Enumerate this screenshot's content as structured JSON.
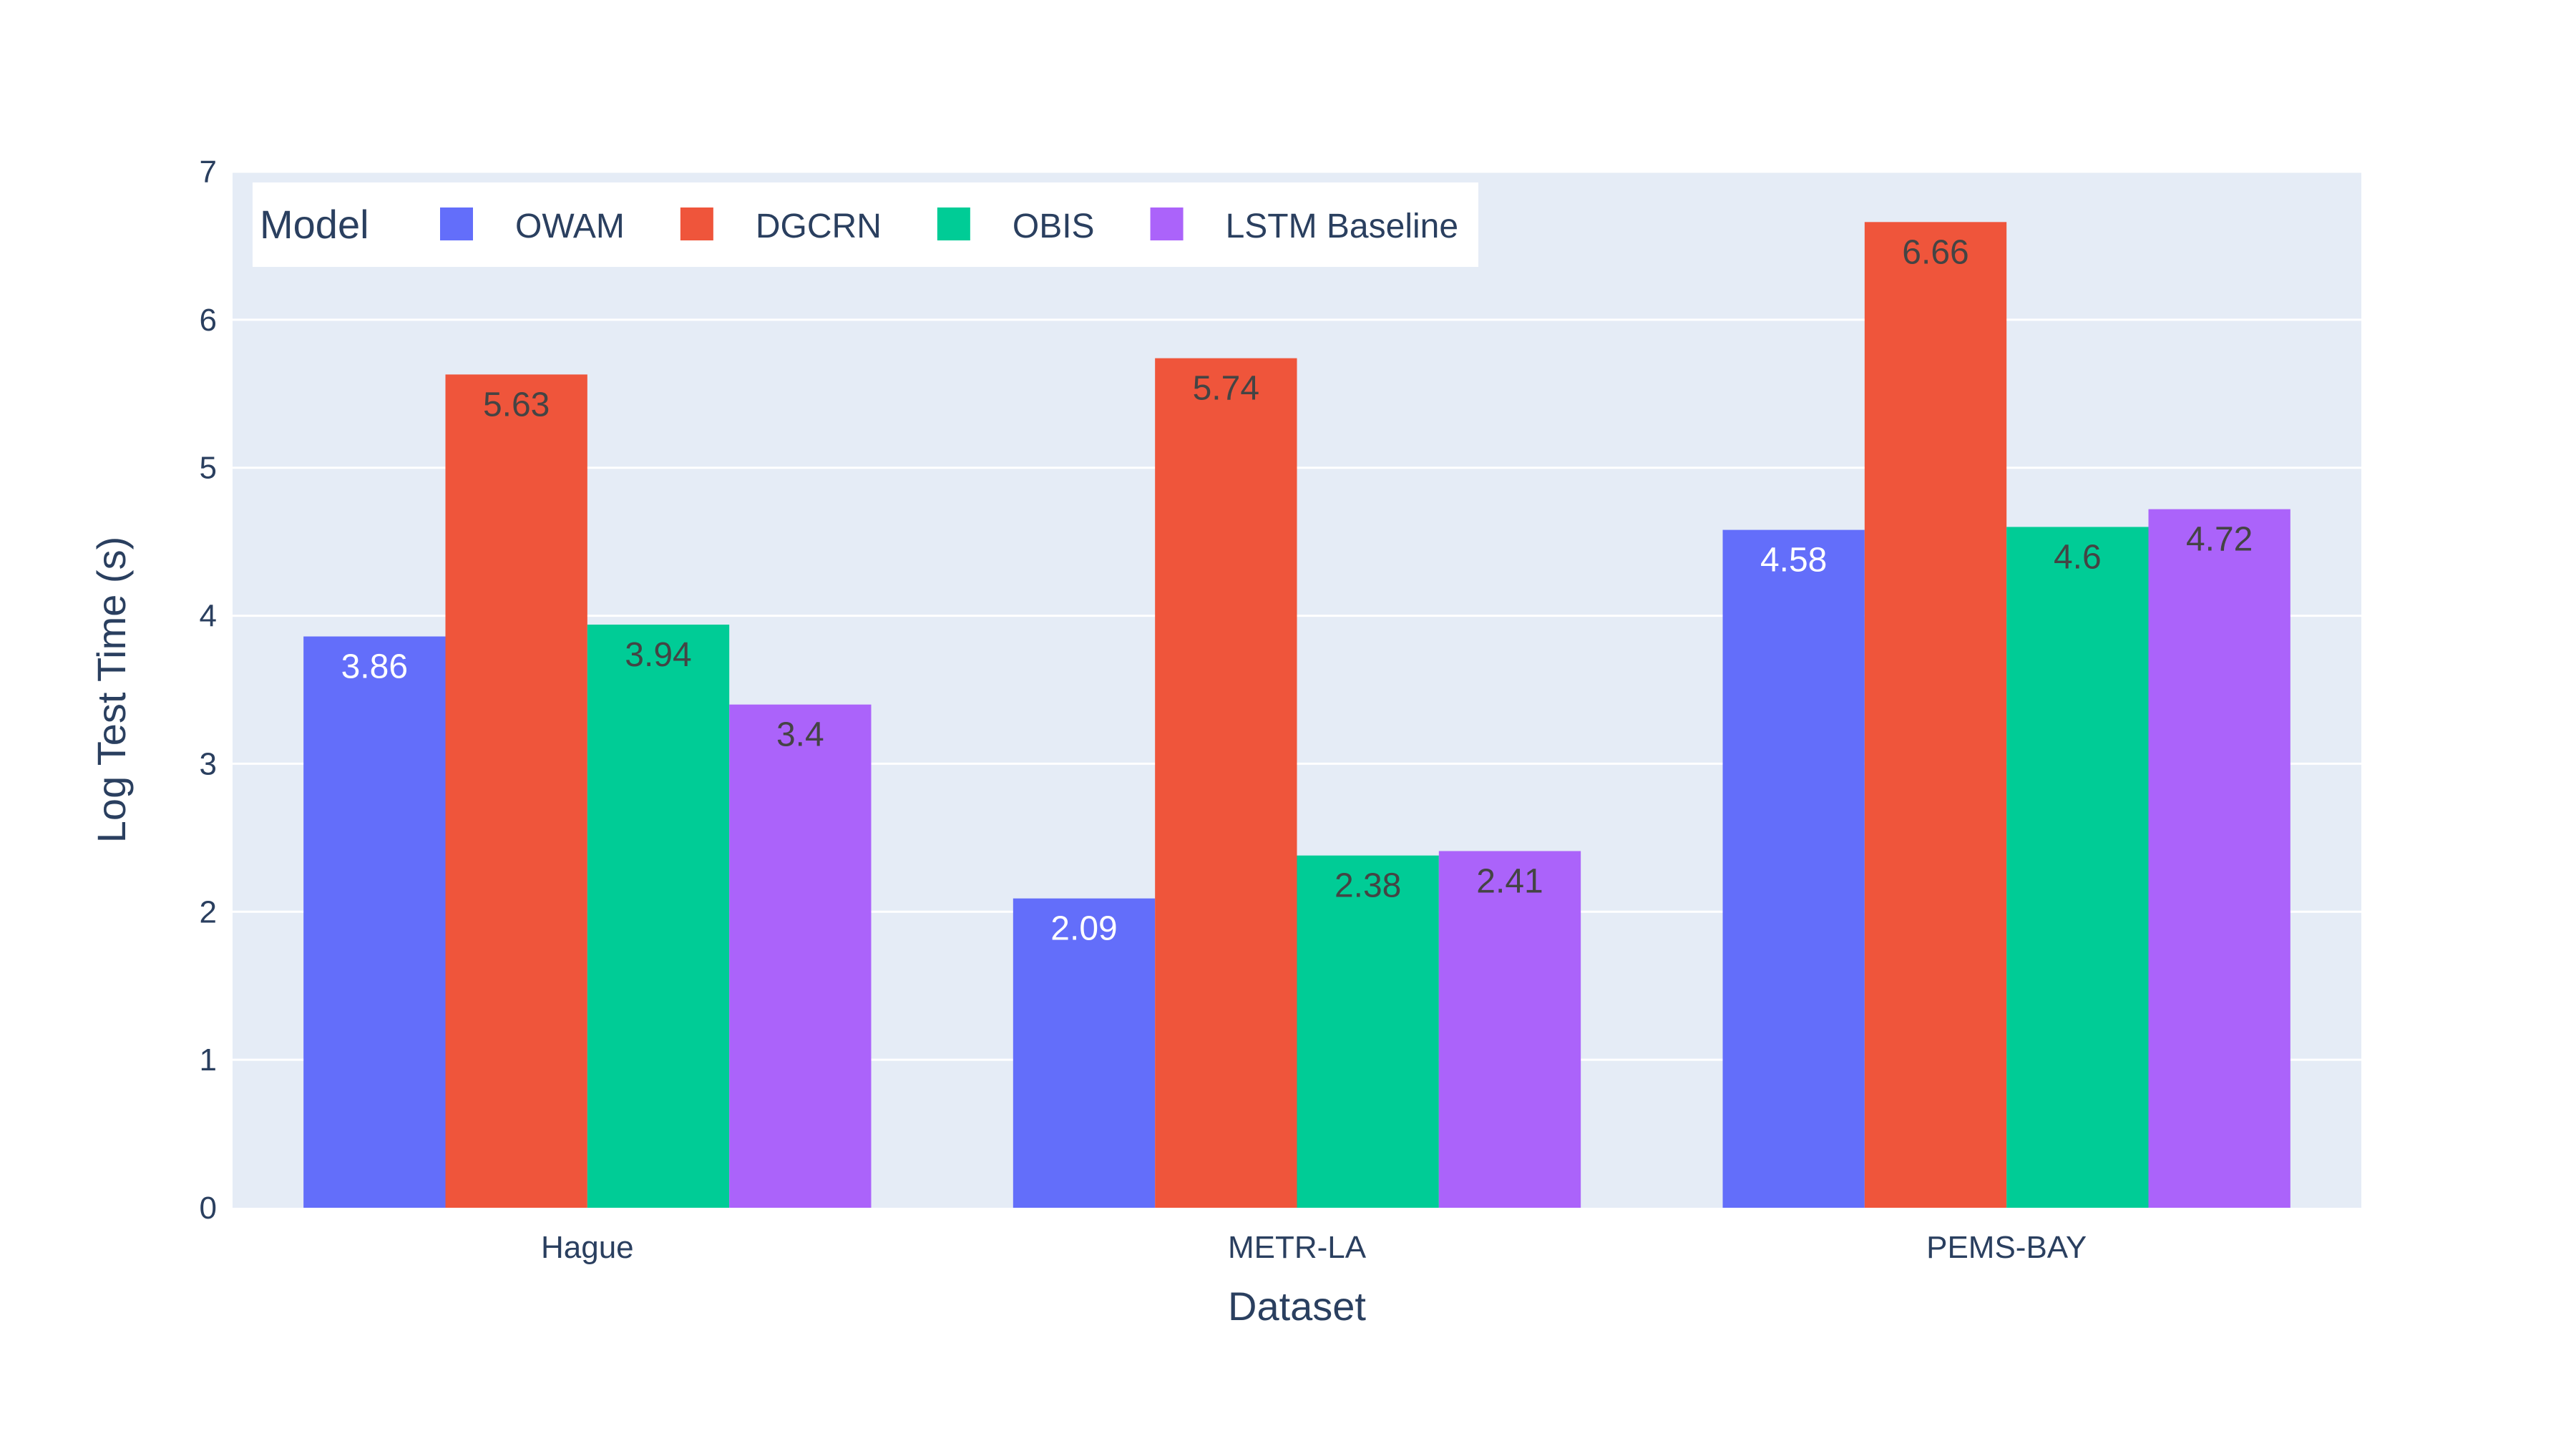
{
  "chart_data": {
    "type": "bar",
    "xlabel": "Dataset",
    "ylabel": "Log Test Time (s)",
    "categories": [
      "Hague",
      "METR-LA",
      "PEMS-BAY"
    ],
    "ylim": [
      0,
      7
    ],
    "yticks": [
      0,
      1,
      2,
      3,
      4,
      5,
      6,
      7
    ],
    "grid": true,
    "legend": {
      "title": "Model",
      "placement": "top-left",
      "orientation": "horizontal"
    },
    "series": [
      {
        "name": "OWAM",
        "color": "#636efa",
        "label_color": "#ffffff",
        "values": [
          3.86,
          2.09,
          4.58
        ],
        "labels": [
          "3.86",
          "2.09",
          "4.58"
        ]
      },
      {
        "name": "DGCRN",
        "color": "#ef553b",
        "label_color": "#444444",
        "values": [
          5.63,
          5.74,
          6.66
        ],
        "labels": [
          "5.63",
          "5.74",
          "6.66"
        ]
      },
      {
        "name": "OBIS",
        "color": "#00cc96",
        "label_color": "#444444",
        "values": [
          3.94,
          2.38,
          4.6
        ],
        "labels": [
          "3.94",
          "2.38",
          "4.6"
        ]
      },
      {
        "name": "LSTM Baseline",
        "color": "#ab63fa",
        "label_color": "#444444",
        "values": [
          3.4,
          2.41,
          4.72
        ],
        "labels": [
          "3.4",
          "2.41",
          "4.72"
        ]
      }
    ],
    "colors": {
      "plot_background": "#e5ecf6",
      "grid": "#ffffff",
      "text": "#2a3f5f"
    }
  }
}
